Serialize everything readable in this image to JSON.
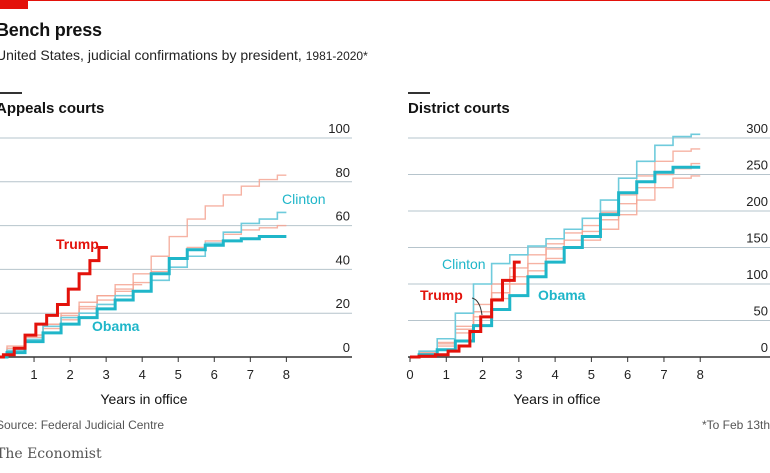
{
  "header": {
    "title": "Bench press",
    "subtitle": "United States, judicial confirmations by president,",
    "subtitle_years": "1981-2020*"
  },
  "footer": {
    "source": "Source: Federal Judicial Centre",
    "footnote": "*To Feb 13th",
    "brand": "The Economist"
  },
  "colors": {
    "trump": "#e3120b",
    "obama": "#1fb6c9",
    "clinton": "#6fcbdc",
    "others": "#f4a493",
    "gridline": "#b6c4cc",
    "baseline": "#333333"
  },
  "chart_data": [
    {
      "type": "line",
      "title": "Appeals courts",
      "xlabel": "Years in office",
      "ylabel": "",
      "xlim": [
        0,
        8.6
      ],
      "ylim": [
        0,
        100
      ],
      "x_ticks": [
        "1",
        "2",
        "3",
        "4",
        "5",
        "6",
        "7",
        "8"
      ],
      "y_ticks": [
        "0",
        "20",
        "40",
        "60",
        "80",
        "100"
      ],
      "series": [
        {
          "name": "Trump",
          "role": "trump",
          "labeled": true,
          "x": [
            0,
            0.3,
            0.6,
            0.9,
            1.2,
            1.5,
            1.8,
            2.1,
            2.4,
            2.7,
            2.9,
            3.05
          ],
          "y": [
            0,
            1,
            4,
            10,
            15,
            19,
            24,
            31,
            38,
            44,
            50,
            50
          ]
        },
        {
          "name": "Obama",
          "role": "obama",
          "labeled": true,
          "x": [
            0,
            0.5,
            1.0,
            1.5,
            2.0,
            2.5,
            3.0,
            3.5,
            4.0,
            4.5,
            5.0,
            5.5,
            6.0,
            6.5,
            7.0,
            7.5,
            8.0
          ],
          "y": [
            0,
            2,
            7,
            11,
            15,
            18,
            22,
            26,
            30,
            38,
            45,
            49,
            51,
            53,
            54,
            55,
            55
          ]
        },
        {
          "name": "Clinton",
          "role": "clinton",
          "labeled": true,
          "x": [
            0,
            0.5,
            1.0,
            1.5,
            2.0,
            2.5,
            3.0,
            3.5,
            4.0,
            4.5,
            5.0,
            5.5,
            6.0,
            6.5,
            7.0,
            7.5,
            8.0
          ],
          "y": [
            0,
            3,
            8,
            14,
            18,
            20,
            24,
            28,
            30,
            35,
            41,
            46,
            52,
            57,
            61,
            63,
            66
          ]
        },
        {
          "name": "",
          "role": "other",
          "labeled": false,
          "x": [
            0,
            0.5,
            1.0,
            1.5,
            2.0,
            2.5,
            3.0,
            3.5,
            4.0,
            4.5,
            5.0,
            5.5,
            6.0,
            6.5,
            7.0,
            7.5,
            8.0
          ],
          "y": [
            0,
            4,
            10,
            15,
            19,
            23,
            28,
            33,
            38,
            46,
            55,
            63,
            69,
            74,
            78,
            81,
            83
          ]
        },
        {
          "name": "",
          "role": "other",
          "labeled": false,
          "x": [
            0,
            0.5,
            1.0,
            1.5,
            2.0,
            2.5,
            3.0,
            3.5,
            4.0,
            4.5,
            5.0,
            5.5,
            6.0,
            6.5,
            7.0,
            7.5,
            8.0
          ],
          "y": [
            0,
            3,
            9,
            13,
            17,
            22,
            26,
            30,
            34,
            39,
            45,
            50,
            53,
            56,
            58,
            59,
            60
          ]
        },
        {
          "name": "",
          "role": "other",
          "labeled": false,
          "x": [
            0,
            0.5,
            1.0,
            1.5,
            2.0,
            2.5,
            3.0,
            3.5,
            4.0
          ],
          "y": [
            0,
            5,
            10,
            15,
            20,
            25,
            28,
            31,
            33
          ]
        }
      ]
    },
    {
      "type": "line",
      "title": "District courts",
      "xlabel": "Years in office",
      "ylabel": "",
      "xlim": [
        0,
        8.6
      ],
      "ylim": [
        0,
        300
      ],
      "x_ticks": [
        "0",
        "1",
        "2",
        "3",
        "4",
        "5",
        "6",
        "7",
        "8"
      ],
      "y_ticks": [
        "0",
        "50",
        "100",
        "150",
        "200",
        "250",
        "300"
      ],
      "series": [
        {
          "name": "Trump",
          "role": "trump",
          "labeled": true,
          "x": [
            0,
            0.5,
            0.9,
            1.2,
            1.5,
            1.8,
            2.1,
            2.4,
            2.7,
            3.05
          ],
          "y": [
            0,
            1,
            3,
            8,
            15,
            35,
            55,
            78,
            105,
            130
          ]
        },
        {
          "name": "Obama",
          "role": "obama",
          "labeled": true,
          "x": [
            0,
            0.5,
            1.0,
            1.5,
            2.0,
            2.5,
            3.0,
            3.5,
            4.0,
            4.5,
            5.0,
            5.5,
            6.0,
            6.5,
            7.0,
            7.5,
            8.0
          ],
          "y": [
            0,
            3,
            10,
            22,
            43,
            65,
            84,
            110,
            130,
            150,
            165,
            195,
            225,
            240,
            253,
            260,
            260
          ]
        },
        {
          "name": "Clinton",
          "role": "clinton",
          "labeled": true,
          "x": [
            0,
            0.5,
            1.0,
            1.5,
            2.0,
            2.5,
            3.0,
            3.5,
            4.0,
            4.5,
            5.0,
            5.5,
            6.0,
            6.5,
            7.0,
            7.5,
            8.0
          ],
          "y": [
            0,
            8,
            25,
            60,
            100,
            128,
            140,
            152,
            162,
            175,
            190,
            215,
            245,
            268,
            290,
            302,
            305
          ]
        },
        {
          "name": "",
          "role": "other",
          "labeled": false,
          "x": [
            0,
            0.5,
            1.0,
            1.5,
            2.0,
            2.5,
            3.0,
            3.5,
            4.0,
            4.5,
            5.0,
            5.5,
            6.0,
            6.5,
            7.0,
            7.5,
            8.0
          ],
          "y": [
            0,
            6,
            20,
            42,
            72,
            100,
            122,
            140,
            155,
            170,
            180,
            198,
            222,
            248,
            268,
            282,
            285
          ]
        },
        {
          "name": "",
          "role": "other",
          "labeled": false,
          "x": [
            0,
            0.5,
            1.0,
            1.5,
            2.0,
            2.5,
            3.0,
            3.5,
            4.0,
            4.5,
            5.0,
            5.5,
            6.0,
            6.5,
            7.0,
            7.5,
            8.0
          ],
          "y": [
            0,
            5,
            18,
            38,
            62,
            88,
            110,
            128,
            148,
            160,
            172,
            188,
            210,
            232,
            250,
            258,
            265
          ]
        },
        {
          "name": "",
          "role": "other",
          "labeled": false,
          "x": [
            0,
            0.5,
            1.0,
            1.5,
            2.0,
            2.5,
            3.0,
            3.5,
            4.0,
            4.5,
            5.0,
            5.5,
            6.0,
            6.5,
            7.0,
            7.5,
            8.0
          ],
          "y": [
            0,
            4,
            15,
            33,
            55,
            80,
            100,
            118,
            135,
            150,
            160,
            175,
            195,
            215,
            232,
            245,
            248
          ]
        }
      ]
    }
  ]
}
